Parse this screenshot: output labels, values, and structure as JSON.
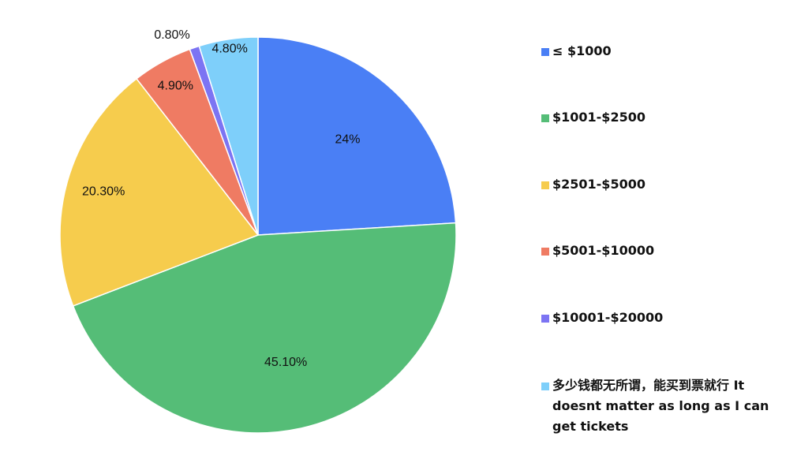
{
  "chart_data": {
    "type": "pie",
    "title": "",
    "slices": [
      {
        "label": "≤ $1000",
        "value": 24,
        "display": "24%",
        "color": "#4a7ff5"
      },
      {
        "label": "$1001-$2500",
        "value": 45.1,
        "display": "45.10%",
        "color": "#55bd77"
      },
      {
        "label": "$2501-$5000",
        "value": 20.3,
        "display": "20.30%",
        "color": "#f6cc4d"
      },
      {
        "label": "$5001-$10000",
        "value": 4.9,
        "display": "4.90%",
        "color": "#ef7b63"
      },
      {
        "label": "$10001-$20000",
        "value": 0.8,
        "display": "0.80%",
        "color": "#7c74f3"
      },
      {
        "label": "多少钱都无所谓，能买到票就行 It doesnt matter as long as I can get tickets",
        "value": 4.8,
        "display": "4.80%",
        "color": "#7ecffa"
      }
    ],
    "legend_position": "right"
  }
}
